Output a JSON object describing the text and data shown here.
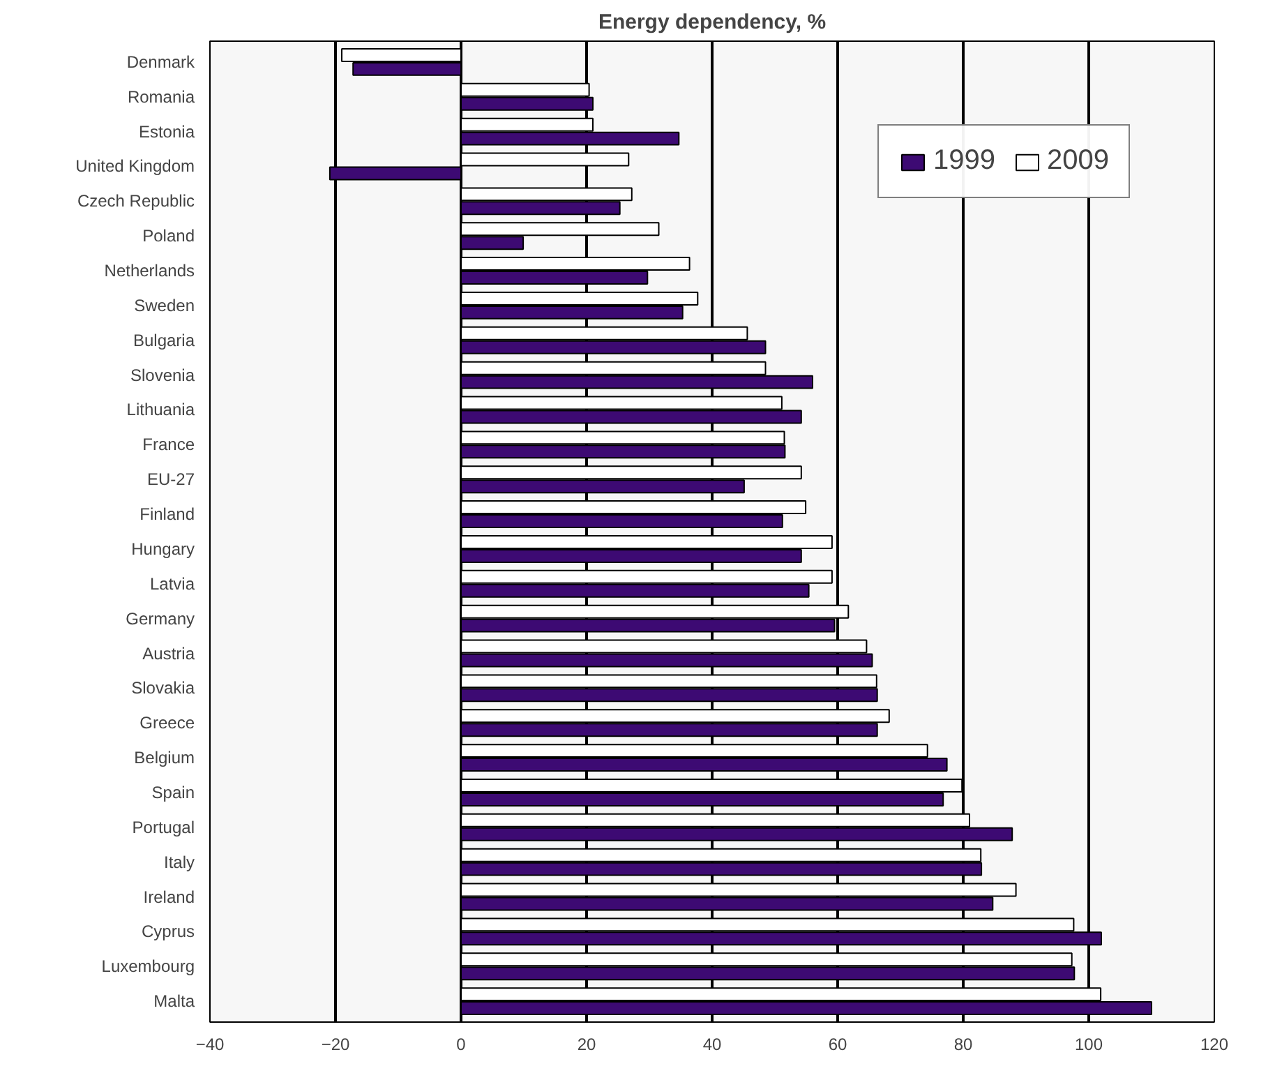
{
  "chart_data": {
    "type": "bar",
    "orientation": "horizontal",
    "title": "Energy dependency, %",
    "categories": [
      "Denmark",
      "Romania",
      "Estonia",
      "United Kingdom",
      "Czech Republic",
      "Poland",
      "Netherlands",
      "Sweden",
      "Bulgaria",
      "Slovenia",
      "Lithuania",
      "France",
      "EU-27",
      "Finland",
      "Hungary",
      "Latvia",
      "Germany",
      "Austria",
      "Slovakia",
      "Greece",
      "Belgium",
      "Spain",
      "Portugal",
      "Italy",
      "Ireland",
      "Cyprus",
      "Luxembourg",
      "Malta"
    ],
    "series": [
      {
        "name": "1999",
        "color": "#3d0a73",
        "values": [
          -17.2,
          21.0,
          34.7,
          -20.9,
          25.3,
          9.9,
          29.7,
          35.3,
          48.5,
          56.0,
          54.2,
          51.6,
          45.1,
          51.2,
          54.2,
          55.4,
          59.5,
          65.5,
          66.3,
          66.3,
          77.4,
          76.8,
          87.8,
          82.9,
          84.7,
          102.0,
          97.7,
          110.0
        ]
      },
      {
        "name": "2009",
        "color": "#ffffff",
        "values": [
          -19.0,
          20.4,
          21.0,
          26.7,
          27.2,
          31.5,
          36.4,
          37.7,
          45.6,
          48.5,
          51.1,
          51.5,
          54.2,
          54.9,
          59.1,
          59.1,
          61.7,
          64.6,
          66.2,
          68.2,
          74.3,
          79.8,
          81.0,
          82.8,
          88.4,
          97.6,
          97.3,
          101.9
        ]
      }
    ],
    "xlim": [
      -40,
      120
    ],
    "xticks": [
      -40,
      -20,
      0,
      20,
      40,
      60,
      80,
      100,
      120
    ],
    "grid": "x",
    "legend": "top right"
  }
}
